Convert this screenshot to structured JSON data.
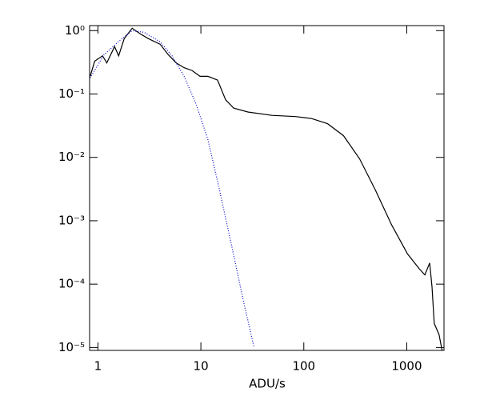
{
  "chart_data": {
    "type": "line",
    "xlabel": "ADU/s",
    "xscale": "log",
    "yscale": "log",
    "xlim": [
      0.83,
      2300
    ],
    "ylim": [
      9e-06,
      1.2
    ],
    "xticks": [
      1,
      10,
      100,
      1000
    ],
    "yticks": [
      {
        "value": 1,
        "label": "10⁰"
      },
      {
        "value": 0.1,
        "label": "10⁻¹"
      },
      {
        "value": 0.01,
        "label": "10⁻²"
      },
      {
        "value": 0.001,
        "label": "10⁻³"
      },
      {
        "value": 0.0001,
        "label": "10⁻⁴"
      },
      {
        "value": 1e-05,
        "label": "10⁻⁵"
      }
    ],
    "series": [
      {
        "color": "#000000",
        "dash": "solid",
        "x": [
          0.84,
          0.93,
          1.11,
          1.22,
          1.45,
          1.59,
          1.8,
          2.15,
          2.57,
          3.08,
          4.02,
          4.8,
          5.75,
          6.87,
          8.2,
          9.8,
          11.7,
          14.5,
          17.4,
          20.8,
          28.6,
          48.9,
          83,
          119,
          170,
          243,
          348,
          498,
          712,
          1017,
          1320,
          1500,
          1670,
          1760,
          1850,
          2060,
          2200
        ],
        "values": [
          0.19,
          0.33,
          0.4,
          0.31,
          0.56,
          0.4,
          0.75,
          1.09,
          0.89,
          0.75,
          0.61,
          0.42,
          0.31,
          0.26,
          0.235,
          0.19,
          0.19,
          0.166,
          0.081,
          0.06,
          0.052,
          0.046,
          0.044,
          0.041,
          0.034,
          0.022,
          0.0095,
          0.003,
          0.00086,
          0.0003,
          0.000175,
          0.00014,
          0.000216,
          9.1e-05,
          2.4e-05,
          1.6e-05,
          9.1e-06
        ]
      },
      {
        "color": "#0000cc",
        "dash": "dotted",
        "x": [
          0.84,
          1.15,
          1.65,
          2.15,
          2.8,
          4.0,
          5.25,
          6.87,
          9.0,
          11.7,
          15.0,
          20.0,
          26.2,
          32.9
        ],
        "values": [
          0.18,
          0.42,
          0.71,
          1.0,
          0.94,
          0.67,
          0.4,
          0.19,
          0.069,
          0.019,
          0.0033,
          0.00039,
          5e-05,
          1e-05
        ]
      }
    ]
  }
}
